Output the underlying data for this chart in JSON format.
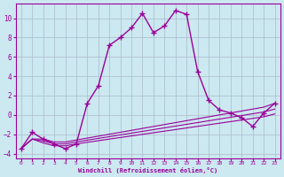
{
  "xlabel": "Windchill (Refroidissement éolien,°C)",
  "bg_color": "#cce8f0",
  "line_color": "#990099",
  "grid_color": "#aabbcc",
  "xlim": [
    -0.5,
    23.5
  ],
  "ylim": [
    -4.5,
    11.5
  ],
  "xticks": [
    0,
    1,
    2,
    3,
    4,
    5,
    6,
    7,
    8,
    9,
    10,
    11,
    12,
    13,
    14,
    15,
    16,
    17,
    18,
    19,
    20,
    21,
    22,
    23
  ],
  "yticks": [
    -4,
    -2,
    0,
    2,
    4,
    6,
    8,
    10
  ],
  "main_x": [
    0,
    1,
    2,
    3,
    4,
    5,
    6,
    7,
    8,
    9,
    10,
    11,
    12,
    13,
    14,
    15,
    16,
    17,
    18,
    19,
    20,
    21,
    22,
    23
  ],
  "main_y": [
    -3.5,
    -1.8,
    -2.5,
    -3.0,
    -3.5,
    -3.0,
    1.2,
    3.0,
    7.2,
    8.0,
    9.0,
    10.5,
    8.5,
    9.2,
    10.8,
    10.4,
    4.5,
    1.5,
    0.5,
    0.2,
    -0.3,
    -1.2,
    0.2,
    1.2
  ],
  "line2_x": [
    0,
    1,
    2,
    3,
    4,
    5,
    22,
    23
  ],
  "line2_y": [
    -3.5,
    -2.5,
    -2.5,
    -2.8,
    -2.8,
    -2.6,
    0.8,
    1.2
  ],
  "line3_x": [
    0,
    1,
    2,
    3,
    4,
    5,
    22,
    23
  ],
  "line3_y": [
    -3.5,
    -2.5,
    -2.7,
    -3.0,
    -3.0,
    -2.8,
    0.3,
    0.6
  ],
  "line4_x": [
    0,
    1,
    2,
    3,
    4,
    5,
    22,
    23
  ],
  "line4_y": [
    -3.5,
    -2.5,
    -2.9,
    -3.2,
    -3.2,
    -3.0,
    -0.2,
    0.1
  ]
}
